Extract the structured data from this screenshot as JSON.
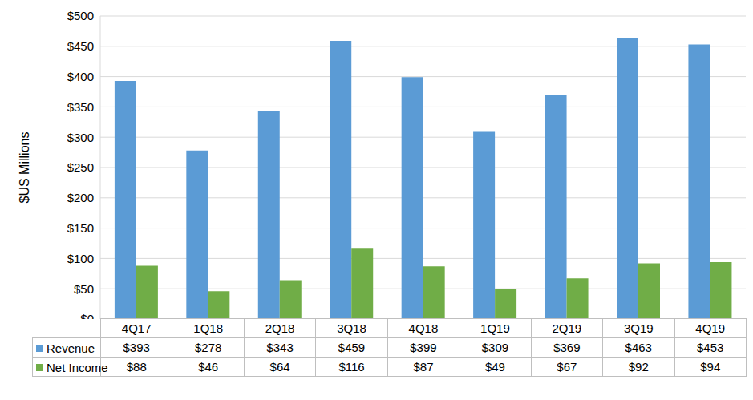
{
  "chart_data": {
    "type": "bar",
    "y_label": "$US Millions",
    "categories": [
      "4Q17",
      "1Q18",
      "2Q18",
      "3Q18",
      "4Q18",
      "1Q19",
      "2Q19",
      "3Q19",
      "4Q19"
    ],
    "series": [
      {
        "name": "Revenue",
        "color": "#5B9BD5",
        "values": [
          393,
          278,
          343,
          459,
          399,
          309,
          369,
          463,
          453
        ],
        "value_labels": [
          "$393",
          "$278",
          "$343",
          "$459",
          "$399",
          "$309",
          "$369",
          "$463",
          "$453"
        ]
      },
      {
        "name": "Net Income",
        "color": "#70AD47",
        "values": [
          88,
          46,
          64,
          116,
          87,
          49,
          67,
          92,
          94
        ],
        "value_labels": [
          "$88",
          "$46",
          "$64",
          "$116",
          "$87",
          "$49",
          "$67",
          "$92",
          "$94"
        ]
      }
    ],
    "ylim": [
      0,
      500
    ],
    "yticks": [
      {
        "value": 0,
        "label": "$0"
      },
      {
        "value": 50,
        "label": "$50"
      },
      {
        "value": 100,
        "label": "$100"
      },
      {
        "value": 150,
        "label": "$150"
      },
      {
        "value": 200,
        "label": "$200"
      },
      {
        "value": 250,
        "label": "$250"
      },
      {
        "value": 300,
        "label": "$300"
      },
      {
        "value": 350,
        "label": "$350"
      },
      {
        "value": 400,
        "label": "$400"
      },
      {
        "value": 450,
        "label": "$450"
      },
      {
        "value": 500,
        "label": "$500"
      }
    ],
    "grid": true
  }
}
